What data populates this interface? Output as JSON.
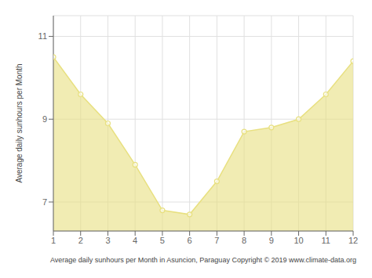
{
  "chart_data": {
    "type": "area",
    "x": [
      1,
      2,
      3,
      4,
      5,
      6,
      7,
      8,
      9,
      10,
      11,
      12
    ],
    "values": [
      10.5,
      9.6,
      8.9,
      7.9,
      6.8,
      6.7,
      7.5,
      8.7,
      8.8,
      9.0,
      9.6,
      10.4
    ],
    "color": "#e8e080",
    "xlabel": "Average daily sunhours per Month in Asuncion, Paraguay Copyright © 2019 www.climate-data.org",
    "ylabel": "Average daily sunhours per Month",
    "xlim": [
      1,
      12
    ],
    "xticks": [
      1,
      2,
      3,
      4,
      5,
      6,
      7,
      8,
      9,
      10,
      11,
      12
    ],
    "ylim": [
      6.3,
      11.5
    ],
    "yticks": [
      7,
      9,
      11
    ],
    "grid": true,
    "marker": "circle"
  }
}
